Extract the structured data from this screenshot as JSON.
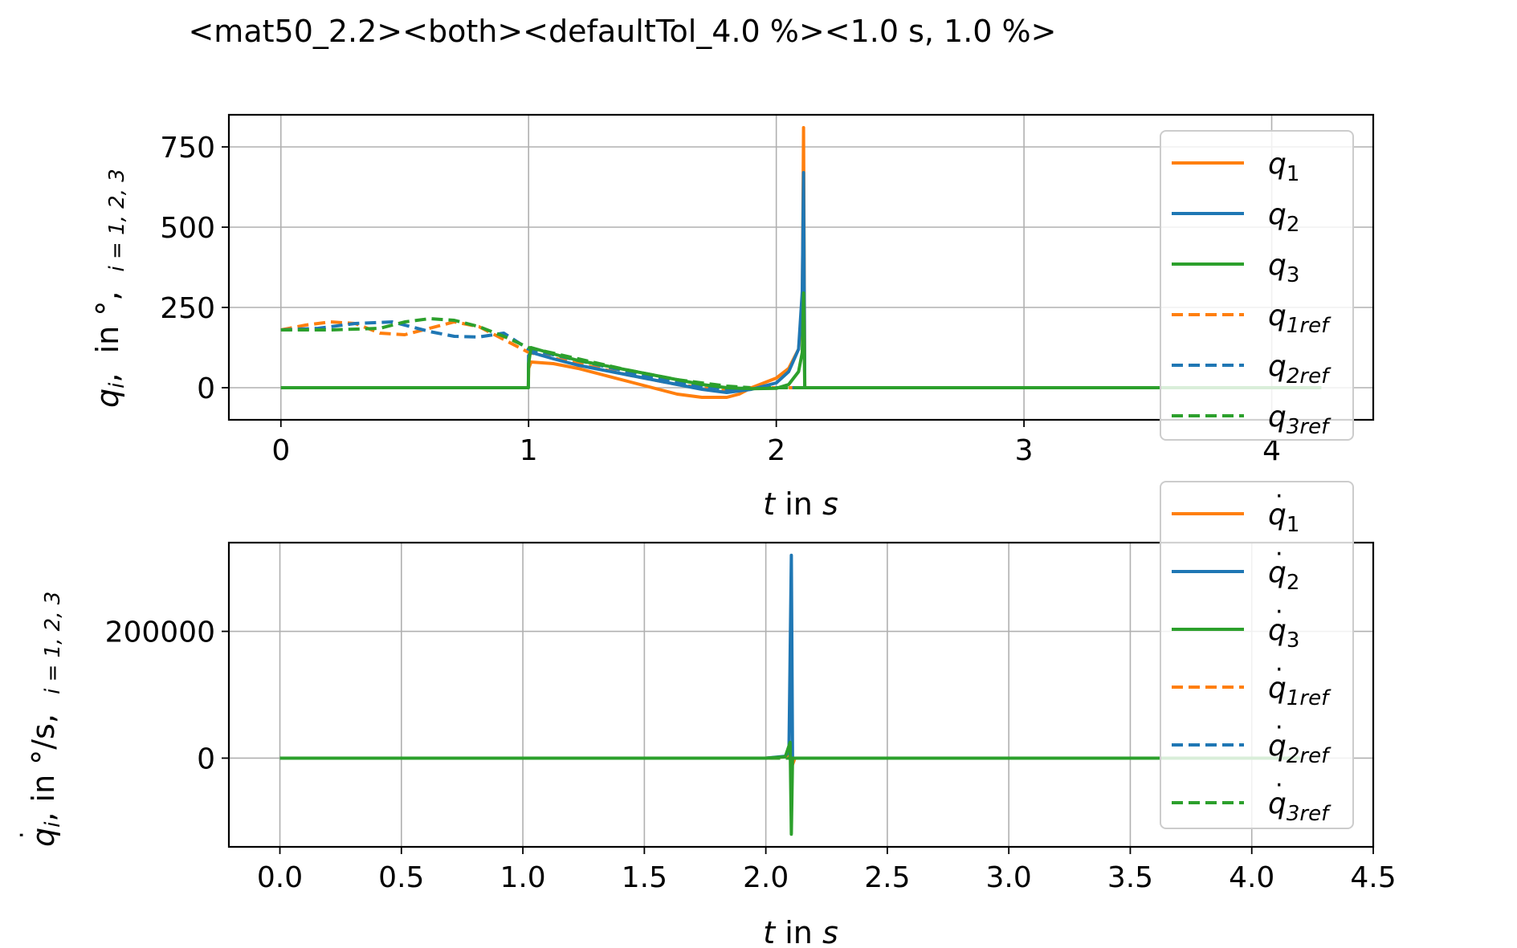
{
  "title": "<mat50_2.2><both><defaultTol_4.0 %><1.0 s, 1.0 %>",
  "colors": {
    "q1": "#ff7f0e",
    "q2": "#1f77b4",
    "q3": "#2ca02c",
    "grid": "#b0b0b0"
  },
  "chart_data": [
    {
      "type": "line",
      "xlim": [
        -0.21,
        4.41
      ],
      "ylim": [
        -100,
        850
      ],
      "xticks": [
        0,
        1,
        2,
        3,
        4
      ],
      "xtick_labels": [
        "0",
        "1",
        "2",
        "3",
        "4"
      ],
      "yticks": [
        0,
        250,
        500,
        750
      ],
      "ytick_labels": [
        "0",
        "250",
        "500",
        "750"
      ],
      "xlabel": {
        "var": "t",
        "mid": " in ",
        "unit": "s"
      },
      "ylabel": {
        "var": "q",
        "sub": "i",
        "mid": ",  in °,  ",
        "idx": "i = 1, 2, 3"
      },
      "grid": true,
      "legend_position": "right",
      "legend": [
        {
          "key": "q1",
          "base": "q",
          "sub": "1",
          "dash": false
        },
        {
          "key": "q2",
          "base": "q",
          "sub": "2",
          "dash": false
        },
        {
          "key": "q3",
          "base": "q",
          "sub": "3",
          "dash": false
        },
        {
          "key": "q1",
          "base": "q",
          "sub": "1ref",
          "dash": true
        },
        {
          "key": "q2",
          "base": "q",
          "sub": "2ref",
          "dash": true
        },
        {
          "key": "q3",
          "base": "q",
          "sub": "3ref",
          "dash": true
        }
      ],
      "series": [
        {
          "name": "q1ref",
          "color_key": "q1",
          "dash": true,
          "x": [
            0,
            0.1,
            0.2,
            0.3,
            0.4,
            0.5,
            0.6,
            0.7,
            0.8,
            0.9,
            1.0,
            1.2,
            1.4,
            1.6,
            1.8,
            1.9,
            2.0,
            2.1,
            2.5,
            3.0,
            3.5,
            4.0,
            4.2
          ],
          "y": [
            180,
            195,
            205,
            200,
            170,
            165,
            185,
            205,
            190,
            150,
            110,
            75,
            40,
            10,
            -10,
            0,
            0,
            0,
            0,
            0,
            0,
            0,
            0
          ]
        },
        {
          "name": "q2ref",
          "color_key": "q2",
          "dash": true,
          "x": [
            0,
            0.15,
            0.3,
            0.45,
            0.6,
            0.7,
            0.8,
            0.9,
            1.0,
            1.2,
            1.4,
            1.6,
            1.8,
            1.9,
            2.0,
            2.1,
            2.5,
            3.0,
            3.5,
            4.0,
            4.2
          ],
          "y": [
            180,
            185,
            200,
            205,
            175,
            160,
            158,
            170,
            120,
            85,
            50,
            15,
            -5,
            0,
            0,
            0,
            0,
            0,
            0,
            0,
            0
          ]
        },
        {
          "name": "q3ref",
          "color_key": "q3",
          "dash": true,
          "x": [
            0,
            0.2,
            0.4,
            0.5,
            0.6,
            0.7,
            0.8,
            0.9,
            1.0,
            1.2,
            1.4,
            1.6,
            1.8,
            1.9,
            2.0,
            2.1,
            2.5,
            3.0,
            3.5,
            4.0,
            4.2
          ],
          "y": [
            180,
            180,
            185,
            205,
            215,
            210,
            190,
            160,
            125,
            90,
            55,
            25,
            5,
            0,
            0,
            0,
            0,
            0,
            0,
            0,
            0
          ]
        },
        {
          "name": "q1",
          "color_key": "q1",
          "dash": false,
          "x": [
            0,
            0.5,
            0.999,
            1.0,
            1.01,
            1.1,
            1.2,
            1.3,
            1.4,
            1.5,
            1.6,
            1.7,
            1.8,
            1.85,
            1.9,
            2.0,
            2.05,
            2.09,
            2.105,
            2.11,
            2.115,
            2.12,
            2.5,
            3.0,
            3.5,
            4.0,
            4.2
          ],
          "y": [
            0,
            0,
            0,
            60,
            80,
            75,
            60,
            40,
            20,
            0,
            -20,
            -30,
            -30,
            -20,
            0,
            30,
            60,
            120,
            250,
            810,
            0,
            0,
            0,
            0,
            0,
            0,
            0
          ]
        },
        {
          "name": "q2",
          "color_key": "q2",
          "dash": false,
          "x": [
            0,
            0.5,
            0.999,
            1.0,
            1.01,
            1.1,
            1.2,
            1.3,
            1.4,
            1.5,
            1.6,
            1.7,
            1.8,
            1.9,
            2.0,
            2.05,
            2.09,
            2.105,
            2.11,
            2.115,
            2.12,
            2.5,
            3.0,
            3.5,
            4.0,
            4.2
          ],
          "y": [
            0,
            0,
            0,
            100,
            110,
            90,
            70,
            55,
            40,
            25,
            10,
            -5,
            -15,
            -5,
            15,
            50,
            120,
            300,
            670,
            0,
            0,
            0,
            0,
            0,
            0,
            0
          ]
        },
        {
          "name": "q3",
          "color_key": "q3",
          "dash": false,
          "x": [
            0,
            0.5,
            0.999,
            1.0,
            1.01,
            1.1,
            1.2,
            1.3,
            1.4,
            1.5,
            1.6,
            1.7,
            1.8,
            1.9,
            2.0,
            2.05,
            2.09,
            2.105,
            2.11,
            2.115,
            2.12,
            2.5,
            3.0,
            3.5,
            4.0,
            4.2
          ],
          "y": [
            0,
            0,
            0,
            75,
            125,
            105,
            85,
            70,
            55,
            40,
            25,
            10,
            0,
            -3,
            -2,
            10,
            50,
            110,
            295,
            0,
            0,
            0,
            0,
            0,
            0,
            0
          ]
        }
      ]
    },
    {
      "type": "line",
      "xlim": [
        -0.21,
        4.5
      ],
      "ylim": [
        -140000,
        340000
      ],
      "xticks": [
        0,
        0.5,
        1.0,
        1.5,
        2.0,
        2.5,
        3.0,
        3.5,
        4.0,
        4.5
      ],
      "xtick_labels": [
        "0.0",
        "0.5",
        "1.0",
        "1.5",
        "2.0",
        "2.5",
        "3.0",
        "3.5",
        "4.0",
        "4.5"
      ],
      "yticks": [
        0,
        200000
      ],
      "ytick_labels": [
        "0",
        "200000"
      ],
      "xlabel": {
        "var": "t",
        "mid": " in ",
        "unit": "s"
      },
      "ylabel": {
        "var": "q",
        "sub": "i",
        "mid": ", in °/s,  ",
        "idx": "i = 1, 2, 3",
        "dot": true
      },
      "grid": true,
      "legend_position": "right",
      "legend": [
        {
          "key": "q1",
          "base": "q",
          "sub": "1",
          "dash": false,
          "dot": true
        },
        {
          "key": "q2",
          "base": "q",
          "sub": "2",
          "dash": false,
          "dot": true
        },
        {
          "key": "q3",
          "base": "q",
          "sub": "3",
          "dash": false,
          "dot": true
        },
        {
          "key": "q1",
          "base": "q",
          "sub": "1ref",
          "dash": true,
          "dot": true
        },
        {
          "key": "q2",
          "base": "q",
          "sub": "2ref",
          "dash": true,
          "dot": true
        },
        {
          "key": "q3",
          "base": "q",
          "sub": "3ref",
          "dash": true,
          "dot": true
        }
      ],
      "series": [
        {
          "name": "q1ref_dot",
          "color_key": "q1",
          "dash": true,
          "x": [
            0,
            4.2
          ],
          "y": [
            0,
            0
          ]
        },
        {
          "name": "q2ref_dot",
          "color_key": "q2",
          "dash": true,
          "x": [
            0,
            4.2
          ],
          "y": [
            0,
            0
          ]
        },
        {
          "name": "q3ref_dot",
          "color_key": "q3",
          "dash": true,
          "x": [
            0,
            4.2
          ],
          "y": [
            0,
            0
          ]
        },
        {
          "name": "q1_dot",
          "color_key": "q1",
          "dash": false,
          "x": [
            0,
            1.0,
            2.0,
            2.08,
            2.1,
            2.105,
            2.11,
            2.12,
            3.0,
            4.2
          ],
          "y": [
            0,
            0,
            0,
            2000,
            8000,
            20000,
            -10000,
            0,
            0,
            0
          ]
        },
        {
          "name": "q2_dot",
          "color_key": "q2",
          "dash": false,
          "x": [
            0,
            1.0,
            2.0,
            2.08,
            2.095,
            2.105,
            2.11,
            2.12,
            3.0,
            4.2
          ],
          "y": [
            0,
            0,
            0,
            3000,
            10000,
            320000,
            0,
            0,
            0,
            0
          ]
        },
        {
          "name": "q3_dot",
          "color_key": "q3",
          "dash": false,
          "x": [
            0,
            1.0,
            2.0,
            2.08,
            2.1,
            2.105,
            2.11,
            2.12,
            3.0,
            4.2
          ],
          "y": [
            0,
            0,
            0,
            2000,
            25000,
            -120000,
            0,
            0,
            0,
            0
          ]
        }
      ]
    }
  ]
}
